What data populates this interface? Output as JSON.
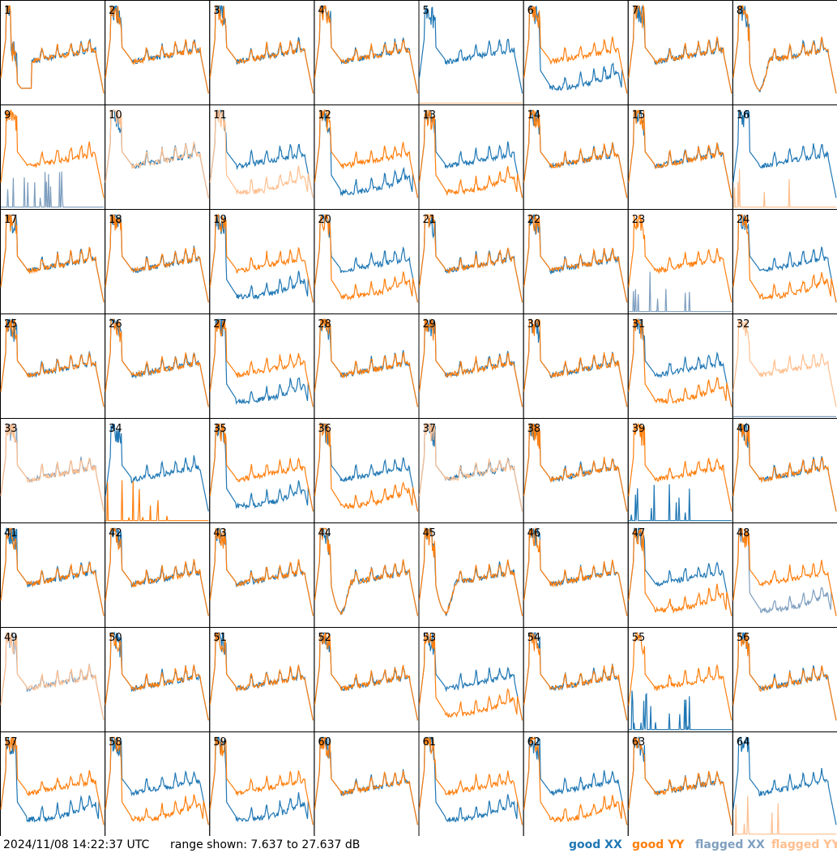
{
  "footer": {
    "timestamp": "2024/11/08 14:22:37 UTC",
    "range_text": "range shown: 7.637 to 27.637 dB",
    "legend": {
      "good_xx": "good XX",
      "good_yy": "good YY",
      "flagged_xx": "flagged XX",
      "flagged_yy": "flagged YY"
    }
  },
  "colors": {
    "good_xx": "#1f77b4",
    "good_yy": "#ff7f0e",
    "flagged_xx": "#7f9fbf",
    "flagged_yy": "#ffbf8f",
    "frame": "#000000"
  },
  "chart_data": {
    "type": "line",
    "grid": "8x8 small multiples",
    "ylim": [
      7.637,
      27.637
    ],
    "yunit": "dB",
    "panels": [
      {
        "id": "1",
        "xx": "good",
        "yy": "good",
        "shape": "deep-dip"
      },
      {
        "id": "2",
        "xx": "good",
        "yy": "good",
        "shape": "normal"
      },
      {
        "id": "3",
        "xx": "good",
        "yy": "good",
        "shape": "normal"
      },
      {
        "id": "4",
        "xx": "good",
        "yy": "good",
        "shape": "normal"
      },
      {
        "id": "5",
        "xx": "good",
        "yy": "flagged",
        "shape": "yy-dead"
      },
      {
        "id": "6",
        "xx": "good",
        "yy": "good",
        "shape": "xx-low"
      },
      {
        "id": "7",
        "xx": "good",
        "yy": "good",
        "shape": "normal"
      },
      {
        "id": "8",
        "xx": "good",
        "yy": "good",
        "shape": "dip"
      },
      {
        "id": "9",
        "xx": "flagged",
        "yy": "good",
        "shape": "xx-spiky"
      },
      {
        "id": "10",
        "xx": "good",
        "yy": "flagged",
        "shape": "normal"
      },
      {
        "id": "11",
        "xx": "good",
        "yy": "flagged",
        "shape": "yy-low"
      },
      {
        "id": "12",
        "xx": "good",
        "yy": "good",
        "shape": "xx-low"
      },
      {
        "id": "13",
        "xx": "good",
        "yy": "good",
        "shape": "yy-low"
      },
      {
        "id": "14",
        "xx": "good",
        "yy": "good",
        "shape": "normal"
      },
      {
        "id": "15",
        "xx": "good",
        "yy": "good",
        "shape": "normal"
      },
      {
        "id": "16",
        "xx": "good",
        "yy": "flagged",
        "shape": "yy-spiky"
      },
      {
        "id": "17",
        "xx": "good",
        "yy": "good",
        "shape": "normal"
      },
      {
        "id": "18",
        "xx": "good",
        "yy": "good",
        "shape": "normal"
      },
      {
        "id": "19",
        "xx": "good",
        "yy": "good",
        "shape": "xx-low"
      },
      {
        "id": "20",
        "xx": "good",
        "yy": "good",
        "shape": "yy-low"
      },
      {
        "id": "21",
        "xx": "good",
        "yy": "good",
        "shape": "normal"
      },
      {
        "id": "22",
        "xx": "good",
        "yy": "good",
        "shape": "normal"
      },
      {
        "id": "23",
        "xx": "flagged",
        "yy": "good",
        "shape": "xx-spiky"
      },
      {
        "id": "24",
        "xx": "good",
        "yy": "good",
        "shape": "yy-low"
      },
      {
        "id": "25",
        "xx": "good",
        "yy": "good",
        "shape": "normal"
      },
      {
        "id": "26",
        "xx": "good",
        "yy": "good",
        "shape": "normal"
      },
      {
        "id": "27",
        "xx": "good",
        "yy": "good",
        "shape": "xx-low"
      },
      {
        "id": "28",
        "xx": "good",
        "yy": "good",
        "shape": "normal"
      },
      {
        "id": "29",
        "xx": "good",
        "yy": "good",
        "shape": "normal"
      },
      {
        "id": "30",
        "xx": "good",
        "yy": "good",
        "shape": "normal"
      },
      {
        "id": "31",
        "xx": "good",
        "yy": "good",
        "shape": "yy-low"
      },
      {
        "id": "32",
        "xx": "flagged",
        "yy": "flagged",
        "shape": "xx-dead"
      },
      {
        "id": "33",
        "xx": "flagged",
        "yy": "flagged",
        "shape": "normal"
      },
      {
        "id": "34",
        "xx": "good",
        "yy": "good",
        "shape": "yy-spiky"
      },
      {
        "id": "35",
        "xx": "good",
        "yy": "good",
        "shape": "xx-low"
      },
      {
        "id": "36",
        "xx": "good",
        "yy": "good",
        "shape": "yy-low"
      },
      {
        "id": "37",
        "xx": "good",
        "yy": "flagged",
        "shape": "normal"
      },
      {
        "id": "38",
        "xx": "good",
        "yy": "good",
        "shape": "normal"
      },
      {
        "id": "39",
        "xx": "good",
        "yy": "good",
        "shape": "xx-spiky"
      },
      {
        "id": "40",
        "xx": "good",
        "yy": "good",
        "shape": "normal"
      },
      {
        "id": "41",
        "xx": "good",
        "yy": "good",
        "shape": "normal"
      },
      {
        "id": "42",
        "xx": "good",
        "yy": "good",
        "shape": "normal"
      },
      {
        "id": "43",
        "xx": "good",
        "yy": "good",
        "shape": "normal"
      },
      {
        "id": "44",
        "xx": "good",
        "yy": "good",
        "shape": "dip"
      },
      {
        "id": "45",
        "xx": "good",
        "yy": "good",
        "shape": "dip"
      },
      {
        "id": "46",
        "xx": "good",
        "yy": "good",
        "shape": "normal"
      },
      {
        "id": "47",
        "xx": "good",
        "yy": "good",
        "shape": "yy-low"
      },
      {
        "id": "48",
        "xx": "flagged",
        "yy": "good",
        "shape": "xx-low"
      },
      {
        "id": "49",
        "xx": "flagged",
        "yy": "flagged",
        "shape": "normal"
      },
      {
        "id": "50",
        "xx": "good",
        "yy": "good",
        "shape": "normal"
      },
      {
        "id": "51",
        "xx": "good",
        "yy": "good",
        "shape": "normal"
      },
      {
        "id": "52",
        "xx": "good",
        "yy": "good",
        "shape": "normal"
      },
      {
        "id": "53",
        "xx": "good",
        "yy": "good",
        "shape": "yy-low"
      },
      {
        "id": "54",
        "xx": "good",
        "yy": "good",
        "shape": "normal"
      },
      {
        "id": "55",
        "xx": "good",
        "yy": "good",
        "shape": "xx-spiky"
      },
      {
        "id": "56",
        "xx": "good",
        "yy": "good",
        "shape": "normal"
      },
      {
        "id": "57",
        "xx": "good",
        "yy": "good",
        "shape": "xx-low"
      },
      {
        "id": "58",
        "xx": "good",
        "yy": "good",
        "shape": "yy-low"
      },
      {
        "id": "59",
        "xx": "good",
        "yy": "good",
        "shape": "xx-low"
      },
      {
        "id": "60",
        "xx": "good",
        "yy": "good",
        "shape": "normal"
      },
      {
        "id": "61",
        "xx": "good",
        "yy": "good",
        "shape": "xx-low"
      },
      {
        "id": "62",
        "xx": "good",
        "yy": "good",
        "shape": "yy-low"
      },
      {
        "id": "63",
        "xx": "good",
        "yy": "good",
        "shape": "normal"
      },
      {
        "id": "64",
        "xx": "good",
        "yy": "flagged",
        "shape": "yy-spiky"
      }
    ]
  }
}
